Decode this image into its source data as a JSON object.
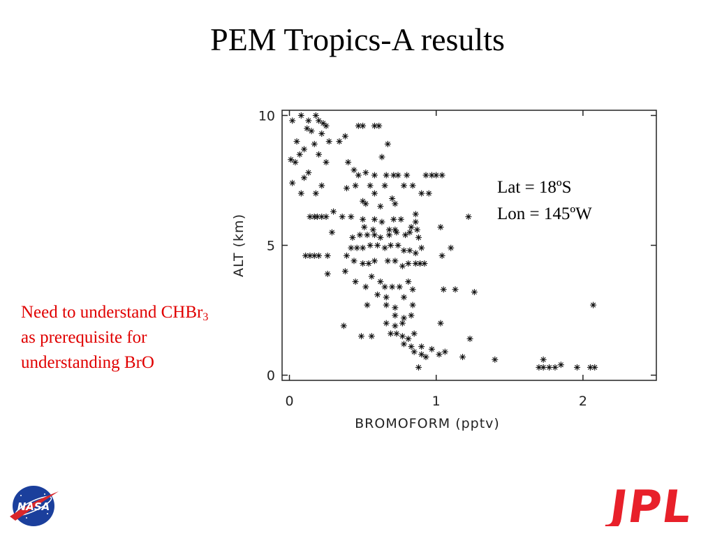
{
  "slide": {
    "title": "PEM Tropics-A results",
    "note_text": "Need to understand CHBr",
    "note_subscript": "3",
    "note_line2": "as prerequisite for",
    "note_line3": "understanding BrO",
    "lat_label": "Lat  = 18ºS",
    "lon_label": "Lon = 145ºW",
    "nasa_logo_text": "NASA",
    "jpl_logo_text": "JPL",
    "colors": {
      "note": "#e00000",
      "jpl": "#e8202a",
      "nasa_blue": "#1b3f9c",
      "nasa_red": "#d8262b"
    }
  },
  "chart_data": {
    "type": "scatter",
    "title": "",
    "xlabel": "BROMOFORM (pptv)",
    "ylabel": "ALT (km)",
    "xlim": [
      -0.05,
      2.5
    ],
    "ylim": [
      -0.2,
      10.2
    ],
    "xticks": [
      0,
      1,
      2
    ],
    "yticks": [
      0,
      5,
      10
    ],
    "xtick_labels": [
      "0",
      "1",
      "2"
    ],
    "ytick_labels": [
      "0",
      "5",
      "10"
    ],
    "grid": false,
    "marker": "asterisk",
    "series": [
      {
        "name": "",
        "points": [
          [
            0.08,
            10.0
          ],
          [
            0.18,
            10.0
          ],
          [
            0.13,
            9.8
          ],
          [
            0.2,
            9.8
          ],
          [
            0.23,
            9.7
          ],
          [
            0.25,
            9.6
          ],
          [
            0.02,
            9.8
          ],
          [
            0.12,
            9.5
          ],
          [
            0.15,
            9.4
          ],
          [
            0.22,
            9.3
          ],
          [
            0.38,
            9.2
          ],
          [
            0.34,
            9.0
          ],
          [
            0.05,
            9.0
          ],
          [
            0.17,
            8.9
          ],
          [
            0.27,
            9.0
          ],
          [
            0.1,
            8.7
          ],
          [
            0.07,
            8.5
          ],
          [
            0.2,
            8.5
          ],
          [
            0.4,
            8.2
          ],
          [
            0.01,
            8.3
          ],
          [
            0.04,
            8.2
          ],
          [
            0.13,
            7.8
          ],
          [
            0.1,
            7.6
          ],
          [
            0.25,
            8.2
          ],
          [
            0.44,
            7.9
          ],
          [
            0.47,
            7.7
          ],
          [
            0.02,
            7.4
          ],
          [
            0.22,
            7.3
          ],
          [
            0.39,
            7.2
          ],
          [
            0.18,
            7.0
          ],
          [
            0.08,
            7.0
          ],
          [
            0.47,
            9.6
          ],
          [
            0.5,
            9.6
          ],
          [
            0.58,
            9.6
          ],
          [
            0.61,
            9.6
          ],
          [
            0.67,
            8.9
          ],
          [
            0.63,
            8.4
          ],
          [
            0.52,
            7.8
          ],
          [
            0.58,
            7.7
          ],
          [
            0.66,
            7.7
          ],
          [
            0.71,
            7.7
          ],
          [
            0.74,
            7.7
          ],
          [
            0.8,
            7.7
          ],
          [
            0.93,
            7.7
          ],
          [
            0.97,
            7.7
          ],
          [
            1.0,
            7.7
          ],
          [
            1.04,
            7.7
          ],
          [
            0.45,
            7.3
          ],
          [
            0.55,
            7.3
          ],
          [
            0.65,
            7.3
          ],
          [
            0.78,
            7.3
          ],
          [
            0.84,
            7.3
          ],
          [
            0.9,
            7.0
          ],
          [
            0.95,
            7.0
          ],
          [
            0.58,
            7.0
          ],
          [
            0.7,
            6.8
          ],
          [
            0.72,
            6.6
          ],
          [
            0.5,
            6.7
          ],
          [
            0.52,
            6.6
          ],
          [
            0.62,
            6.5
          ],
          [
            0.3,
            6.3
          ],
          [
            0.14,
            6.1
          ],
          [
            0.17,
            6.1
          ],
          [
            0.19,
            6.1
          ],
          [
            0.22,
            6.1
          ],
          [
            0.25,
            6.1
          ],
          [
            0.36,
            6.1
          ],
          [
            0.42,
            6.1
          ],
          [
            0.5,
            6.0
          ],
          [
            0.58,
            6.0
          ],
          [
            0.63,
            5.9
          ],
          [
            0.71,
            6.0
          ],
          [
            0.76,
            6.0
          ],
          [
            0.86,
            6.2
          ],
          [
            0.86,
            5.9
          ],
          [
            0.51,
            5.7
          ],
          [
            0.57,
            5.6
          ],
          [
            0.68,
            5.6
          ],
          [
            0.72,
            5.6
          ],
          [
            0.83,
            5.7
          ],
          [
            0.87,
            5.6
          ],
          [
            1.03,
            5.7
          ],
          [
            1.22,
            6.1
          ],
          [
            0.29,
            5.5
          ],
          [
            0.43,
            5.3
          ],
          [
            0.48,
            5.4
          ],
          [
            0.53,
            5.4
          ],
          [
            0.58,
            5.4
          ],
          [
            0.62,
            5.3
          ],
          [
            0.68,
            5.4
          ],
          [
            0.73,
            5.5
          ],
          [
            0.79,
            5.4
          ],
          [
            0.82,
            5.5
          ],
          [
            0.88,
            5.3
          ],
          [
            0.17,
            4.6
          ],
          [
            0.2,
            4.6
          ],
          [
            0.14,
            4.6
          ],
          [
            0.11,
            4.6
          ],
          [
            0.26,
            4.6
          ],
          [
            0.39,
            4.6
          ],
          [
            0.42,
            4.9
          ],
          [
            0.46,
            4.9
          ],
          [
            0.5,
            4.9
          ],
          [
            0.55,
            5.0
          ],
          [
            0.6,
            5.0
          ],
          [
            0.65,
            4.9
          ],
          [
            0.69,
            5.0
          ],
          [
            0.74,
            5.0
          ],
          [
            0.78,
            4.8
          ],
          [
            0.82,
            4.8
          ],
          [
            0.86,
            4.7
          ],
          [
            0.9,
            4.9
          ],
          [
            1.1,
            4.9
          ],
          [
            1.04,
            4.6
          ],
          [
            0.44,
            4.4
          ],
          [
            0.5,
            4.3
          ],
          [
            0.54,
            4.3
          ],
          [
            0.58,
            4.4
          ],
          [
            0.67,
            4.4
          ],
          [
            0.72,
            4.4
          ],
          [
            0.77,
            4.2
          ],
          [
            0.81,
            4.3
          ],
          [
            0.86,
            4.3
          ],
          [
            0.89,
            4.3
          ],
          [
            0.92,
            4.3
          ],
          [
            0.38,
            4.0
          ],
          [
            0.26,
            3.9
          ],
          [
            0.45,
            3.6
          ],
          [
            0.52,
            3.4
          ],
          [
            0.56,
            3.8
          ],
          [
            0.62,
            3.6
          ],
          [
            0.65,
            3.4
          ],
          [
            0.7,
            3.4
          ],
          [
            0.75,
            3.4
          ],
          [
            0.81,
            3.6
          ],
          [
            0.84,
            3.3
          ],
          [
            1.05,
            3.3
          ],
          [
            1.13,
            3.3
          ],
          [
            1.26,
            3.2
          ],
          [
            0.6,
            3.1
          ],
          [
            0.66,
            3.0
          ],
          [
            0.78,
            3.0
          ],
          [
            0.53,
            2.7
          ],
          [
            0.66,
            2.7
          ],
          [
            0.72,
            2.6
          ],
          [
            0.84,
            2.7
          ],
          [
            2.07,
            2.7
          ],
          [
            0.72,
            2.3
          ],
          [
            0.78,
            2.2
          ],
          [
            0.83,
            2.3
          ],
          [
            0.66,
            2.0
          ],
          [
            0.72,
            1.9
          ],
          [
            0.77,
            2.0
          ],
          [
            0.37,
            1.9
          ],
          [
            1.03,
            2.0
          ],
          [
            0.69,
            1.6
          ],
          [
            0.73,
            1.6
          ],
          [
            0.77,
            1.5
          ],
          [
            0.81,
            1.4
          ],
          [
            0.85,
            1.6
          ],
          [
            0.49,
            1.5
          ],
          [
            0.56,
            1.5
          ],
          [
            1.23,
            1.4
          ],
          [
            0.78,
            1.2
          ],
          [
            0.83,
            1.1
          ],
          [
            0.9,
            1.1
          ],
          [
            0.97,
            1.0
          ],
          [
            0.85,
            0.9
          ],
          [
            0.9,
            0.8
          ],
          [
            0.93,
            0.7
          ],
          [
            1.02,
            0.8
          ],
          [
            1.06,
            0.9
          ],
          [
            1.18,
            0.7
          ],
          [
            1.4,
            0.6
          ],
          [
            1.73,
            0.6
          ],
          [
            1.85,
            0.4
          ],
          [
            0.88,
            0.3
          ],
          [
            1.7,
            0.3
          ],
          [
            1.73,
            0.3
          ],
          [
            1.77,
            0.3
          ],
          [
            1.81,
            0.3
          ],
          [
            1.96,
            0.3
          ],
          [
            2.05,
            0.3
          ],
          [
            2.08,
            0.3
          ]
        ]
      }
    ]
  }
}
